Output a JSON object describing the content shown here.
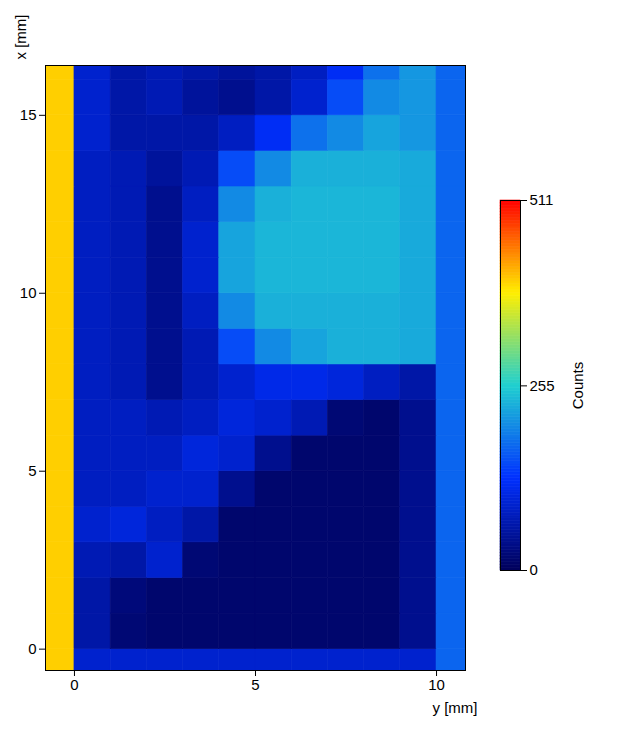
{
  "chart_data": {
    "type": "heatmap",
    "xlabel": "y [mm]",
    "ylabel": "x [mm]",
    "xlim": [
      -0.8,
      10.8
    ],
    "xticks": [
      0,
      5,
      10
    ],
    "ylim": [
      -0.6,
      16.4
    ],
    "yticks": [
      0,
      5,
      10,
      15
    ],
    "col_edges": [
      -1,
      0,
      1,
      2,
      3,
      4,
      5,
      6,
      7,
      8,
      9,
      10,
      11
    ],
    "row_edges": [
      -1,
      0,
      1,
      2,
      3,
      4,
      5,
      6,
      7,
      8,
      9,
      10,
      11,
      12,
      13,
      14,
      15,
      16,
      17
    ],
    "cells": [
      [
        400,
        90,
        90,
        90,
        90,
        90,
        90,
        90,
        90,
        90,
        90,
        170
      ],
      [
        400,
        60,
        20,
        15,
        15,
        15,
        15,
        15,
        15,
        15,
        40,
        170
      ],
      [
        400,
        60,
        25,
        15,
        15,
        15,
        15,
        15,
        15,
        15,
        40,
        170
      ],
      [
        400,
        70,
        60,
        90,
        20,
        15,
        15,
        15,
        15,
        15,
        40,
        170
      ],
      [
        400,
        90,
        100,
        80,
        60,
        15,
        15,
        15,
        15,
        15,
        40,
        170
      ],
      [
        400,
        80,
        80,
        90,
        90,
        40,
        15,
        15,
        15,
        15,
        40,
        170
      ],
      [
        400,
        80,
        80,
        80,
        100,
        90,
        40,
        15,
        15,
        15,
        40,
        170
      ],
      [
        400,
        80,
        80,
        70,
        80,
        100,
        90,
        70,
        20,
        15,
        40,
        170
      ],
      [
        400,
        80,
        70,
        40,
        70,
        90,
        110,
        110,
        100,
        80,
        60,
        170
      ],
      [
        400,
        80,
        70,
        40,
        70,
        150,
        200,
        220,
        230,
        230,
        225,
        170
      ],
      [
        400,
        80,
        70,
        40,
        80,
        200,
        230,
        230,
        230,
        230,
        225,
        170
      ],
      [
        400,
        80,
        70,
        40,
        90,
        220,
        235,
        235,
        235,
        235,
        225,
        170
      ],
      [
        400,
        80,
        70,
        40,
        90,
        220,
        235,
        235,
        235,
        235,
        225,
        170
      ],
      [
        400,
        80,
        70,
        40,
        80,
        200,
        230,
        235,
        235,
        235,
        225,
        170
      ],
      [
        400,
        80,
        70,
        50,
        70,
        150,
        200,
        230,
        230,
        230,
        225,
        170
      ],
      [
        400,
        90,
        60,
        60,
        60,
        80,
        120,
        180,
        200,
        220,
        210,
        170
      ],
      [
        400,
        90,
        60,
        70,
        50,
        40,
        60,
        90,
        150,
        200,
        210,
        170
      ],
      [
        400,
        90,
        60,
        70,
        60,
        50,
        60,
        80,
        120,
        180,
        210,
        170
      ]
    ],
    "colorbar": {
      "label": "Counts",
      "lim": [
        0,
        511
      ],
      "ticks": [
        0,
        255,
        511
      ]
    }
  }
}
